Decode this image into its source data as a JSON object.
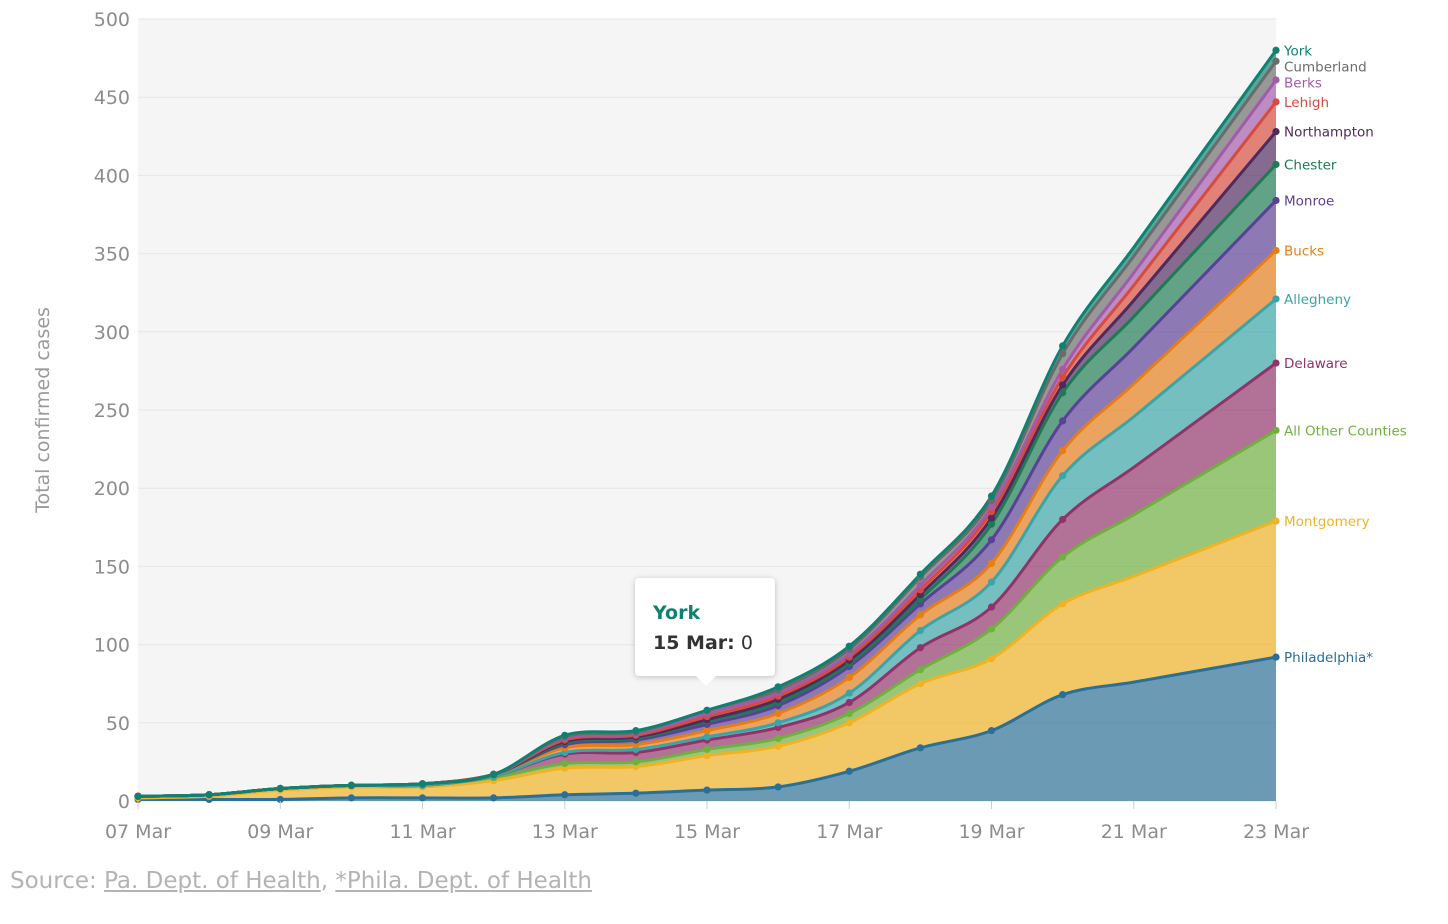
{
  "chart_data": {
    "type": "area",
    "stacked": true,
    "title": "",
    "ylabel": "Total confirmed cases",
    "xlabel": "",
    "ylim": [
      0,
      500
    ],
    "yticks": [
      0,
      50,
      100,
      150,
      200,
      250,
      300,
      350,
      400,
      450,
      500
    ],
    "x": [
      "07 Mar",
      "08 Mar",
      "09 Mar",
      "10 Mar",
      "11 Mar",
      "12 Mar",
      "13 Mar",
      "14 Mar",
      "15 Mar",
      "16 Mar",
      "17 Mar",
      "18 Mar",
      "19 Mar",
      "20 Mar",
      "21 Mar",
      "22 Mar",
      "23 Mar"
    ],
    "xticks": [
      "07 Mar",
      "09 Mar",
      "11 Mar",
      "13 Mar",
      "15 Mar",
      "17 Mar",
      "19 Mar",
      "21 Mar",
      "23 Mar"
    ],
    "grid": true,
    "legend": "inline-labels-right",
    "series": [
      {
        "name": "Philadelphia*",
        "color": "#2a6f97",
        "values": [
          1,
          1,
          1,
          2,
          2,
          2,
          4,
          5,
          7,
          9,
          19,
          34,
          45,
          68,
          null,
          null,
          92
        ]
      },
      {
        "name": "Montgomery",
        "color": "#f0b323",
        "values": [
          1,
          2,
          6,
          7,
          7,
          11,
          17,
          17,
          22,
          26,
          31,
          41,
          46,
          58,
          null,
          null,
          87
        ]
      },
      {
        "name": "All Other Counties",
        "color": "#6fb03f",
        "values": [
          1,
          1,
          1,
          1,
          1,
          2,
          3,
          3,
          4,
          5,
          6,
          9,
          19,
          30,
          null,
          null,
          58
        ]
      },
      {
        "name": "Delaware",
        "color": "#92326a",
        "values": [
          0,
          0,
          0,
          0,
          0,
          1,
          6,
          6,
          6,
          7,
          7,
          14,
          14,
          24,
          null,
          null,
          43
        ]
      },
      {
        "name": "Allegheny",
        "color": "#3aa5a8",
        "values": [
          0,
          0,
          0,
          0,
          0,
          0,
          1,
          2,
          2,
          3,
          6,
          11,
          16,
          28,
          null,
          null,
          41
        ]
      },
      {
        "name": "Bucks",
        "color": "#e67e17",
        "values": [
          0,
          0,
          0,
          0,
          1,
          1,
          3,
          3,
          4,
          6,
          10,
          10,
          12,
          16,
          null,
          null,
          31
        ]
      },
      {
        "name": "Monroe",
        "color": "#5c3f96",
        "values": [
          0,
          0,
          0,
          0,
          0,
          0,
          2,
          3,
          4,
          5,
          7,
          7,
          15,
          19,
          null,
          null,
          32
        ]
      },
      {
        "name": "Chester",
        "color": "#1c7b52",
        "values": [
          0,
          0,
          0,
          0,
          0,
          0,
          1,
          1,
          2,
          2,
          2,
          3,
          10,
          18,
          null,
          null,
          23
        ]
      },
      {
        "name": "Northampton",
        "color": "#4e2a5f",
        "values": [
          0,
          0,
          0,
          0,
          0,
          0,
          1,
          1,
          1,
          2,
          2,
          3,
          4,
          5,
          null,
          null,
          21
        ]
      },
      {
        "name": "Lehigh",
        "color": "#d64b3c",
        "values": [
          0,
          0,
          0,
          0,
          0,
          0,
          1,
          1,
          2,
          2,
          2,
          3,
          4,
          5,
          null,
          null,
          19
        ]
      },
      {
        "name": "Berks",
        "color": "#a25aa9",
        "values": [
          0,
          0,
          0,
          0,
          0,
          0,
          1,
          1,
          2,
          2,
          2,
          3,
          3,
          5,
          null,
          null,
          14
        ]
      },
      {
        "name": "Cumberland",
        "color": "#6b6b6b",
        "values": [
          0,
          0,
          0,
          0,
          0,
          0,
          1,
          1,
          2,
          2,
          3,
          5,
          4,
          10,
          null,
          null,
          12
        ]
      },
      {
        "name": "York",
        "color": "#0f8170",
        "values": [
          0,
          0,
          0,
          0,
          0,
          0,
          1,
          1,
          0,
          2,
          2,
          2,
          3,
          5,
          null,
          null,
          7
        ]
      }
    ],
    "tooltip": {
      "series": "York",
      "date": "15 Mar:",
      "value": "0"
    }
  },
  "source": {
    "prefix": "Source: ",
    "link1": "Pa. Dept. of Health",
    "separator": ", ",
    "link2": "*Phila. Dept. of Health"
  }
}
